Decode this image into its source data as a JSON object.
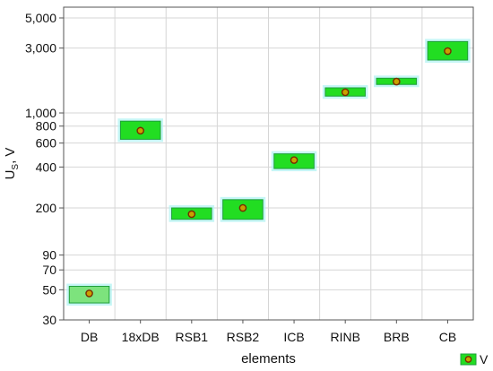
{
  "chart_data": {
    "type": "box",
    "categories": [
      "DB",
      "18xDB",
      "RSB1",
      "RSB2",
      "ICB",
      "RINB",
      "BRB",
      "CB"
    ],
    "series": [
      {
        "name": "V",
        "values": [
          47,
          740,
          180,
          200,
          450,
          1420,
          1700,
          2850
        ],
        "box_low": [
          40,
          640,
          165,
          165,
          390,
          1330,
          1620,
          2450
        ],
        "box_high": [
          53,
          870,
          200,
          230,
          500,
          1530,
          1800,
          3350
        ]
      }
    ],
    "xlabel": "elements",
    "ylabel": "U_S, V",
    "ylabel_main": "U",
    "ylabel_sub": "S",
    "ylabel_rest": ", V",
    "yscale": "log",
    "ylim": [
      30,
      6000
    ],
    "yticks": [
      30,
      50,
      70,
      90,
      200,
      400,
      600,
      800,
      1000,
      3000,
      5000
    ],
    "ytick_labels": [
      "30",
      "50",
      "70",
      "90",
      "200",
      "400",
      "600",
      "800",
      "1,000",
      "3,000",
      "5,000"
    ],
    "grid": true,
    "legend_position": "bottom-right",
    "colors": {
      "box_fill": "#22dd22",
      "box_fill_light": "#7de37d",
      "box_stroke": "#1e9e3a",
      "box_glow": "#aef2f2",
      "marker_fill": "#c9a100",
      "marker_stroke": "#7a2a00",
      "grid": "#d6d6d6",
      "axis": "#555555"
    }
  }
}
